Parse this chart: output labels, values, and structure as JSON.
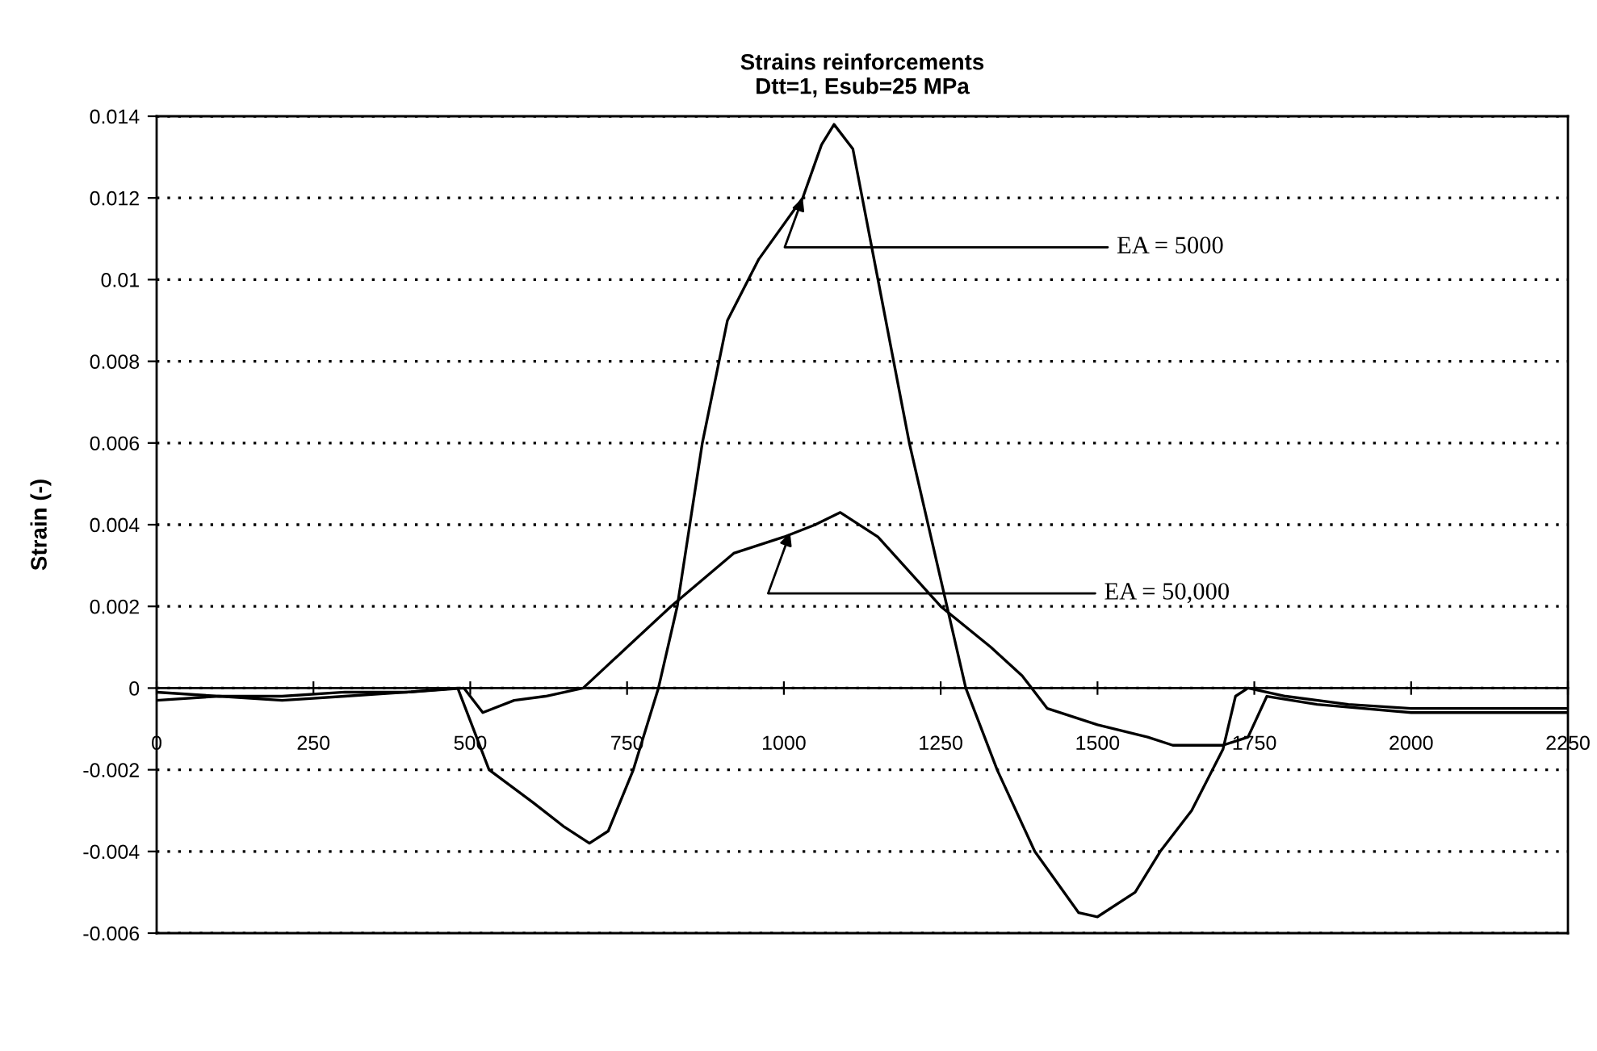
{
  "chart_data": {
    "type": "line",
    "title": "Strains reinforcements",
    "subtitle": "Dtt=1, Esub=25 MPa",
    "ylabel": "Strain (-)",
    "series": [
      {
        "color": "#000000",
        "x": [
          0,
          100,
          200,
          300,
          400,
          480,
          500,
          530,
          600,
          650,
          690,
          720,
          760,
          800,
          830,
          870,
          910,
          960,
          1030,
          1060,
          1080,
          1110,
          1150,
          1200,
          1260,
          1290,
          1340,
          1400,
          1470,
          1500,
          1560,
          1600,
          1650,
          1700,
          1720,
          1740,
          1800,
          1900,
          2000,
          2100,
          2250
        ],
        "values": [
          -0.0003,
          -0.0002,
          -0.0003,
          -0.0002,
          -0.0001,
          0.0,
          -0.0008,
          -0.002,
          -0.0028,
          -0.0034,
          -0.0038,
          -0.0035,
          -0.002,
          0.0,
          0.002,
          0.006,
          0.009,
          0.0105,
          0.012,
          0.0133,
          0.0138,
          0.0132,
          0.01,
          0.006,
          0.002,
          0.0,
          -0.002,
          -0.004,
          -0.0055,
          -0.0056,
          -0.005,
          -0.004,
          -0.003,
          -0.0015,
          -0.0002,
          0.0,
          -0.0002,
          -0.0004,
          -0.0005,
          -0.0005,
          -0.0005
        ]
      },
      {
        "color": "#000000",
        "x": [
          0,
          100,
          200,
          300,
          400,
          490,
          520,
          570,
          620,
          680,
          750,
          820,
          920,
          1000,
          1050,
          1090,
          1150,
          1250,
          1330,
          1380,
          1420,
          1500,
          1580,
          1620,
          1700,
          1740,
          1770,
          1850,
          2000,
          2100,
          2250
        ],
        "values": [
          -0.0001,
          -0.0002,
          -0.0002,
          -0.0001,
          -0.0001,
          0.0,
          -0.0006,
          -0.0003,
          -0.0002,
          0.0,
          0.001,
          0.002,
          0.0033,
          0.0037,
          0.004,
          0.0043,
          0.0037,
          0.002,
          0.001,
          0.0003,
          -0.0005,
          -0.0009,
          -0.0012,
          -0.0014,
          -0.0014,
          -0.0012,
          -0.0002,
          -0.0004,
          -0.0006,
          -0.0006,
          -0.0006
        ]
      }
    ],
    "annotations": [
      {
        "text": "EA = 5000",
        "x": 1030,
        "y": 0.012
      },
      {
        "text": "EA = 50,000",
        "x": 1010,
        "y": 0.0038
      }
    ],
    "xlim": [
      0,
      2250
    ],
    "xticks": [
      0,
      250,
      500,
      750,
      1000,
      1250,
      1500,
      1750,
      2000,
      2250
    ],
    "ylim": [
      -0.006,
      0.014
    ],
    "yticks": [
      -0.006,
      -0.004,
      -0.002,
      0,
      0.002,
      0.004,
      0.006,
      0.008,
      0.01,
      0.012,
      0.014
    ],
    "grid": "y",
    "legend": false,
    "marker": "none",
    "line_style": "solid"
  }
}
